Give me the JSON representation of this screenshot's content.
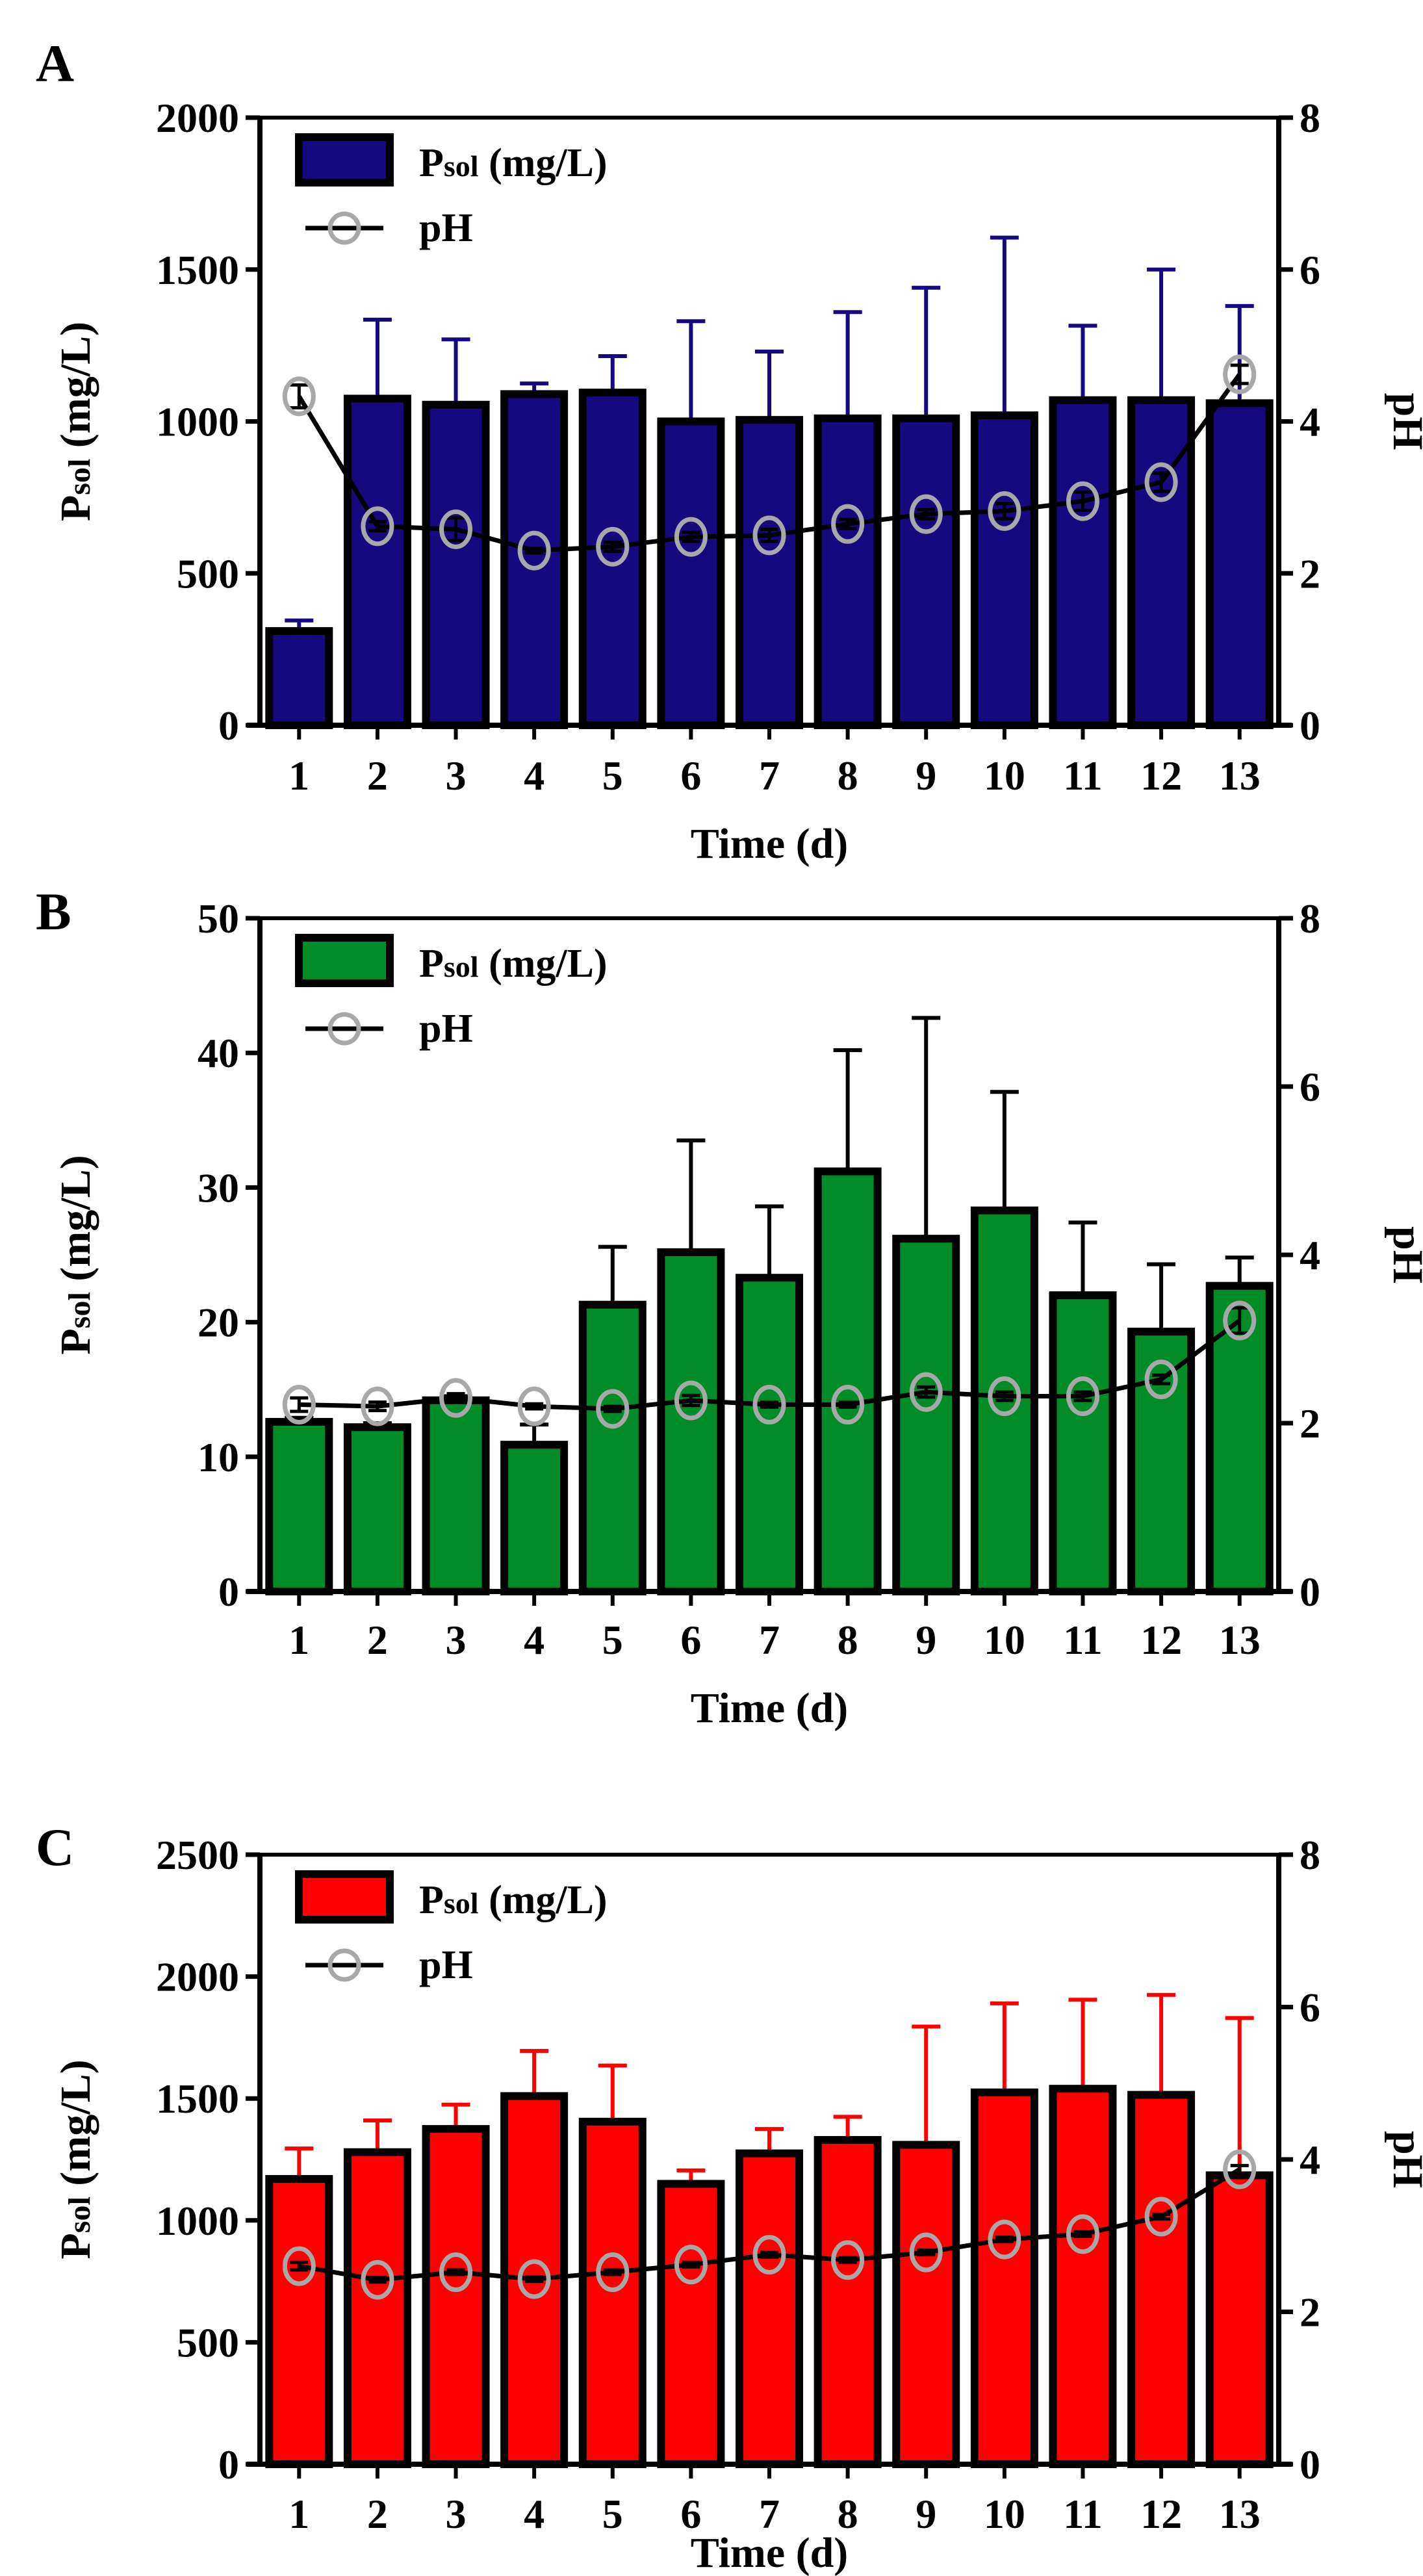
{
  "chart_data": [
    {
      "panel_label": "A",
      "type": "bar+line",
      "categories": [
        "1",
        "2",
        "3",
        "4",
        "5",
        "6",
        "7",
        "8",
        "9",
        "10",
        "11",
        "12",
        "13"
      ],
      "xlabel": "Time (d)",
      "ylabel": "Psol (mg/L)",
      "ylabel_main": "P",
      "ylabel_sub": "sol",
      "ylabel_rest": " (mg/L)",
      "y2label": "pH",
      "ylim": [
        0,
        2000
      ],
      "yticks": [
        0,
        500,
        1000,
        1500,
        2000
      ],
      "y2lim": [
        0,
        8
      ],
      "y2ticks": [
        0,
        2,
        4,
        6,
        8
      ],
      "bar_color": "#16087e",
      "bar_err_color": "#16087e",
      "legend": {
        "bar": "Psol (mg/L)",
        "bar_main": "P",
        "bar_sub": "sol",
        "bar_rest": " (mg/L)",
        "line": "pH",
        "placement": "top-left"
      },
      "series": [
        {
          "name": "Psol (mg/L)",
          "kind": "bar",
          "values": [
            310,
            1075,
            1055,
            1090,
            1095,
            1000,
            1005,
            1010,
            1010,
            1020,
            1070,
            1070,
            1060
          ],
          "err_upper": [
            345,
            1335,
            1270,
            1125,
            1215,
            1330,
            1230,
            1360,
            1440,
            1605,
            1315,
            1500,
            1380
          ]
        },
        {
          "name": "pH",
          "kind": "line",
          "axis": "right",
          "values": [
            4.33,
            2.62,
            2.58,
            2.3,
            2.35,
            2.48,
            2.5,
            2.65,
            2.78,
            2.82,
            2.95,
            3.2,
            4.62
          ],
          "err": [
            0.15,
            0.06,
            0.15,
            0.03,
            0.06,
            0.06,
            0.08,
            0.06,
            0.06,
            0.1,
            0.12,
            0.12,
            0.12
          ]
        }
      ]
    },
    {
      "panel_label": "B",
      "type": "bar+line",
      "categories": [
        "1",
        "2",
        "3",
        "4",
        "5",
        "6",
        "7",
        "8",
        "9",
        "10",
        "11",
        "12",
        "13"
      ],
      "xlabel": "Time (d)",
      "ylabel": "Psol (mg/L)",
      "ylabel_main": "P",
      "ylabel_sub": "sol",
      "ylabel_rest": " (mg/L)",
      "y2label": "pH",
      "ylim": [
        0,
        50
      ],
      "yticks": [
        0,
        10,
        20,
        30,
        40,
        50
      ],
      "y2lim": [
        0,
        8
      ],
      "y2ticks": [
        0,
        2,
        4,
        6,
        8
      ],
      "bar_color": "#028c28",
      "bar_err_color": "#000000",
      "legend": {
        "bar": "Psol (mg/L)",
        "bar_main": "P",
        "bar_sub": "sol",
        "bar_rest": " (mg/L)",
        "line": "pH",
        "placement": "top-left"
      },
      "series": [
        {
          "name": "Psol (mg/L)",
          "kind": "bar",
          "values": [
            12.6,
            12.2,
            14.2,
            10.9,
            21.3,
            25.2,
            23.3,
            31.2,
            26.2,
            28.3,
            22.0,
            19.3,
            22.7
          ],
          "err_upper": [
            12.9,
            12.5,
            14.5,
            12.4,
            25.6,
            33.5,
            28.6,
            40.2,
            42.6,
            37.1,
            27.4,
            24.3,
            24.8
          ]
        },
        {
          "name": "pH",
          "kind": "line",
          "axis": "right",
          "values": [
            2.22,
            2.2,
            2.3,
            2.2,
            2.17,
            2.27,
            2.22,
            2.22,
            2.37,
            2.32,
            2.32,
            2.52,
            3.22
          ],
          "err": [
            0.08,
            0.05,
            0.05,
            0.03,
            0.03,
            0.06,
            0.03,
            0.03,
            0.06,
            0.05,
            0.05,
            0.05,
            0.15
          ]
        }
      ]
    },
    {
      "panel_label": "C",
      "type": "bar+line",
      "categories": [
        "1",
        "2",
        "3",
        "4",
        "5",
        "6",
        "7",
        "8",
        "9",
        "10",
        "11",
        "12",
        "13"
      ],
      "xlabel": "Time (d)",
      "ylabel": "Psol (mg/L)",
      "ylabel_main": "P",
      "ylabel_sub": "sol",
      "ylabel_rest": " (mg/L)",
      "y2label": "pH",
      "ylim": [
        0,
        2500
      ],
      "yticks": [
        0,
        500,
        1000,
        1500,
        2000,
        2500
      ],
      "y2lim": [
        0,
        8
      ],
      "y2ticks": [
        0,
        2,
        4,
        6,
        8
      ],
      "bar_color": "#ff0000",
      "bar_err_color": "#ff0000",
      "legend": {
        "bar": "Psol (mg/L)",
        "bar_main": "P",
        "bar_sub": "sol",
        "bar_rest": " (mg/L)",
        "line": "pH",
        "placement": "top-left"
      },
      "series": [
        {
          "name": "Psol (mg/L)",
          "kind": "bar",
          "values": [
            1170,
            1280,
            1375,
            1510,
            1405,
            1150,
            1275,
            1330,
            1310,
            1525,
            1540,
            1515,
            1185
          ],
          "err_upper": [
            1295,
            1410,
            1475,
            1695,
            1635,
            1205,
            1375,
            1425,
            1795,
            1890,
            1905,
            1925,
            1830
          ]
        },
        {
          "name": "pH",
          "kind": "line",
          "axis": "right",
          "values": [
            2.6,
            2.42,
            2.52,
            2.43,
            2.52,
            2.62,
            2.75,
            2.68,
            2.78,
            2.95,
            3.02,
            3.25,
            3.87
          ],
          "err": [
            0.05,
            0.03,
            0.03,
            0.03,
            0.03,
            0.03,
            0.03,
            0.03,
            0.03,
            0.03,
            0.03,
            0.03,
            0.05
          ]
        }
      ]
    }
  ]
}
